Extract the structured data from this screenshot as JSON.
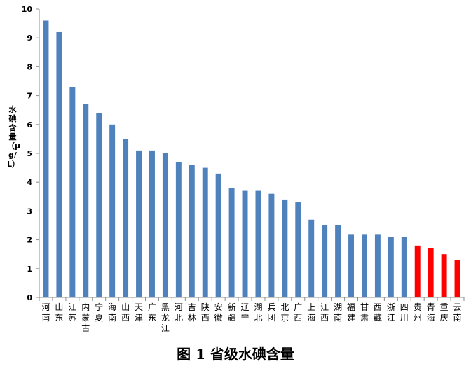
{
  "chart_data": {
    "type": "bar",
    "title": "图 1 省级水碘含量",
    "ylabel": "水碘含量（μg/L）",
    "ylim": [
      0,
      10
    ],
    "yticks": [
      0,
      1,
      2,
      3,
      4,
      5,
      6,
      7,
      8,
      9,
      10
    ],
    "grid": false,
    "categories": [
      "河南",
      "山东",
      "江苏",
      "内蒙古",
      "宁夏",
      "海南",
      "山西",
      "天津",
      "广东",
      "黑龙江",
      "河北",
      "吉林",
      "陕西",
      "安徽",
      "新疆",
      "辽宁",
      "湖北",
      "兵团",
      "北京",
      "广西",
      "上海",
      "江西",
      "湖南",
      "福建",
      "甘肃",
      "西藏",
      "浙江",
      "四川",
      "贵州",
      "青海",
      "重庆",
      "云南"
    ],
    "values": [
      9.6,
      9.2,
      7.3,
      6.7,
      6.4,
      6.0,
      5.5,
      5.1,
      5.1,
      5.0,
      4.7,
      4.6,
      4.5,
      4.3,
      3.8,
      3.7,
      3.7,
      3.6,
      3.4,
      3.3,
      2.7,
      2.5,
      2.5,
      2.2,
      2.2,
      2.2,
      2.1,
      2.1,
      1.8,
      1.7,
      1.5,
      1.3
    ],
    "colors": [
      "blue",
      "blue",
      "blue",
      "blue",
      "blue",
      "blue",
      "blue",
      "blue",
      "blue",
      "blue",
      "blue",
      "blue",
      "blue",
      "blue",
      "blue",
      "blue",
      "blue",
      "blue",
      "blue",
      "blue",
      "blue",
      "blue",
      "blue",
      "blue",
      "blue",
      "blue",
      "blue",
      "blue",
      "red",
      "red",
      "red",
      "red"
    ],
    "palette": {
      "blue": "#4f81bd",
      "red": "#ff0000",
      "axis": "#8c8c8c"
    }
  }
}
